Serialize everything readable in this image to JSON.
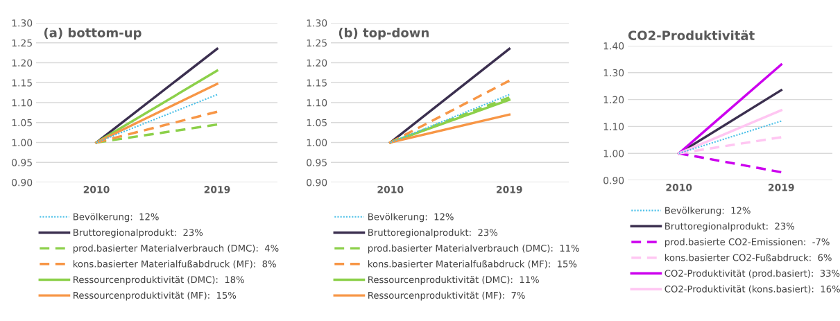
{
  "chart_data": [
    {
      "type": "line",
      "title": "(a) bottom-up",
      "categories": [
        "2010",
        "2019"
      ],
      "ylim": [
        0.9,
        1.3
      ],
      "yticks": [
        {
          "value": 0.9,
          "label": "0.90"
        },
        {
          "value": 0.95,
          "label": "0.95"
        },
        {
          "value": 1.0,
          "label": "1.00"
        },
        {
          "value": 1.05,
          "label": "1.05"
        },
        {
          "value": 1.1,
          "label": "1.10"
        },
        {
          "value": 1.15,
          "label": "1.15"
        },
        {
          "value": 1.2,
          "label": "1.20"
        },
        {
          "value": 1.25,
          "label": "1.25"
        },
        {
          "value": 1.3,
          "label": "1.30"
        }
      ],
      "grid": "y",
      "legend": "bottom",
      "series": [
        {
          "name": "Bevölkerung:  12%",
          "color": "#4bc0e8",
          "line_style": "dotted",
          "values": [
            1.0,
            1.12
          ]
        },
        {
          "name": "Bruttoregionalprodukt:  23%",
          "color": "#3b2f4f",
          "line_style": "solid",
          "values": [
            1.0,
            1.235
          ]
        },
        {
          "name": "prod.basierter Materialverbrauch (DMC):  4%",
          "color": "#8cd04a",
          "line_style": "dashed",
          "values": [
            1.0,
            1.045
          ]
        },
        {
          "name": "kons.basierter Materialfußabdruck (MF):  8%",
          "color": "#f79646",
          "line_style": "dashed",
          "values": [
            1.0,
            1.077
          ]
        },
        {
          "name": "Ressourcenproduktivität (DMC):  18%",
          "color": "#8cd04a",
          "line_style": "solid",
          "values": [
            1.0,
            1.18
          ]
        },
        {
          "name": "Ressourcenproduktivität (MF):  15%",
          "color": "#f79646",
          "line_style": "solid",
          "values": [
            1.0,
            1.147
          ]
        }
      ]
    },
    {
      "type": "line",
      "title": "(b) top-down",
      "categories": [
        "2010",
        "2019"
      ],
      "ylim": [
        0.9,
        1.3
      ],
      "yticks": [
        {
          "value": 0.9,
          "label": "0.90"
        },
        {
          "value": 0.95,
          "label": "0.95"
        },
        {
          "value": 1.0,
          "label": "1.00"
        },
        {
          "value": 1.05,
          "label": "1.05"
        },
        {
          "value": 1.1,
          "label": "1.10"
        },
        {
          "value": 1.15,
          "label": "1.15"
        },
        {
          "value": 1.2,
          "label": "1.20"
        },
        {
          "value": 1.25,
          "label": "1.25"
        },
        {
          "value": 1.3,
          "label": "1.30"
        }
      ],
      "grid": "y",
      "legend": "bottom",
      "series": [
        {
          "name": "Bevölkerung:  12%",
          "color": "#4bc0e8",
          "line_style": "dotted",
          "values": [
            1.0,
            1.12
          ]
        },
        {
          "name": "Bruttoregionalprodukt:  23%",
          "color": "#3b2f4f",
          "line_style": "solid",
          "values": [
            1.0,
            1.235
          ]
        },
        {
          "name": "prod.basierter Materialverbrauch (DMC):  11%",
          "color": "#8cd04a",
          "line_style": "dashed",
          "values": [
            1.0,
            1.113
          ]
        },
        {
          "name": "kons.basierter Materialfußabdruck (MF):  15%",
          "color": "#f79646",
          "line_style": "dashed",
          "values": [
            1.0,
            1.155
          ]
        },
        {
          "name": "Ressourcenproduktivität (DMC):  11%",
          "color": "#8cd04a",
          "line_style": "solid",
          "values": [
            1.0,
            1.107
          ]
        },
        {
          "name": "Ressourcenproduktivität (MF):  7%",
          "color": "#f79646",
          "line_style": "solid",
          "values": [
            1.0,
            1.07
          ]
        }
      ]
    },
    {
      "type": "line",
      "title": "CO2-Produktivität",
      "categories": [
        "2010",
        "2019"
      ],
      "ylim": [
        0.9,
        1.4
      ],
      "yticks": [
        {
          "value": 0.9,
          "label": "0.90"
        },
        {
          "value": 1.0,
          "label": "1.00"
        },
        {
          "value": 1.1,
          "label": "1.10"
        },
        {
          "value": 1.2,
          "label": "1.20"
        },
        {
          "value": 1.3,
          "label": "1.30"
        },
        {
          "value": 1.4,
          "label": "1.40"
        }
      ],
      "grid": "y",
      "legend": "bottom",
      "series": [
        {
          "name": "Bevölkerung:  12%",
          "color": "#4bc0e8",
          "line_style": "dotted",
          "values": [
            1.0,
            1.12
          ]
        },
        {
          "name": "Bruttoregionalprodukt:  23%",
          "color": "#3b2f4f",
          "line_style": "solid",
          "values": [
            1.0,
            1.235
          ]
        },
        {
          "name": "prod.basierte CO2-Emissionen:  -7%",
          "color": "#cc00ee",
          "line_style": "dashed",
          "values": [
            1.0,
            0.93
          ]
        },
        {
          "name": "kons.basierter CO2-Fußabdruck:  6%",
          "color": "#ffc6f2",
          "line_style": "dashed",
          "values": [
            1.0,
            1.06
          ]
        },
        {
          "name": "CO2-Produktivität (prod.basiert):  33%",
          "color": "#cc00ee",
          "line_style": "solid",
          "values": [
            1.0,
            1.33
          ]
        },
        {
          "name": "CO2-Produktivität (kons.basiert):  16%",
          "color": "#ffc6f2",
          "line_style": "solid",
          "values": [
            1.0,
            1.16
          ]
        }
      ]
    }
  ]
}
